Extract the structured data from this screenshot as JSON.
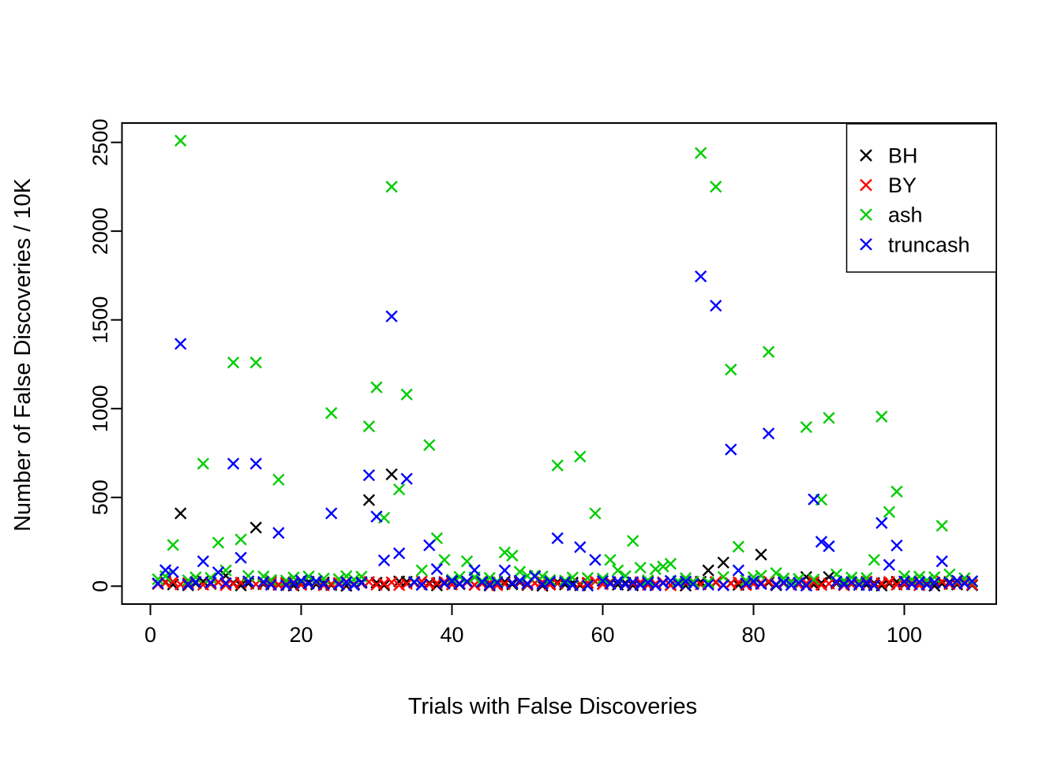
{
  "figure": {
    "background": "#ffffff",
    "xlabel": "Trials with False Discoveries",
    "ylabel": "Number of False Discoveries / 10K"
  },
  "legend": {
    "position": "top-right",
    "items": [
      {
        "label": "BH",
        "color": "#000000",
        "symbol": "x"
      },
      {
        "label": "BY",
        "color": "#FF0000",
        "symbol": "x"
      },
      {
        "label": "ash",
        "color": "#00CD00",
        "symbol": "x"
      },
      {
        "label": "truncash",
        "color": "#0000FF",
        "symbol": "x"
      }
    ]
  },
  "chart_data": {
    "type": "scatter",
    "marker": "x",
    "title": "",
    "xlabel": "Trials with False Discoveries",
    "ylabel": "Number of False Discoveries / 10K",
    "x_ticks": [
      0,
      20,
      40,
      60,
      80,
      100
    ],
    "y_ticks": [
      0,
      500,
      1000,
      1500,
      2000,
      2500
    ],
    "xlim": [
      -3.8,
      112.2
    ],
    "ylim": [
      -100,
      2610
    ],
    "grid": false,
    "legend_position": "top-right",
    "x_start": 1,
    "x_description": "Trial index 1..109; each series array holds the y-value (false discoveries / 10K) for that trial",
    "series": [
      {
        "name": "BH",
        "color": "#000000",
        "values": [
          13,
          24,
          9,
          410,
          5,
          16,
          27,
          12,
          23,
          59,
          19,
          4,
          15,
          330,
          11,
          22,
          7,
          18,
          3,
          14,
          25,
          10,
          21,
          6,
          17,
          2,
          13,
          24,
          485,
          20,
          5,
          630,
          27,
          25,
          23,
          8,
          19,
          4,
          15,
          26,
          11,
          22,
          7,
          18,
          3,
          14,
          25,
          10,
          21,
          6,
          17,
          2,
          13,
          24,
          9,
          20,
          5,
          16,
          27,
          12,
          23,
          8,
          19,
          4,
          15,
          26,
          11,
          22,
          7,
          18,
          3,
          14,
          25,
          89,
          21,
          133,
          17,
          7,
          13,
          24,
          178,
          20,
          5,
          16,
          27,
          12,
          52,
          8,
          19,
          52,
          15,
          26,
          11,
          22,
          7,
          18,
          3,
          14,
          25,
          10,
          21,
          6,
          17,
          2,
          13,
          24,
          9,
          20,
          5
        ]
      },
      {
        "name": "BY",
        "color": "#FF0000",
        "values": [
          12,
          19,
          26,
          10,
          17,
          24,
          8,
          15,
          22,
          6,
          13,
          20,
          27,
          11,
          18,
          25,
          9,
          16,
          23,
          7,
          14,
          21,
          5,
          12,
          19,
          26,
          10,
          17,
          24,
          8,
          15,
          22,
          6,
          13,
          20,
          27,
          11,
          18,
          25,
          9,
          16,
          23,
          7,
          14,
          21,
          5,
          12,
          19,
          26,
          10,
          17,
          24,
          8,
          15,
          22,
          6,
          13,
          20,
          27,
          11,
          18,
          25,
          9,
          16,
          23,
          7,
          14,
          21,
          5,
          12,
          19,
          26,
          10,
          17,
          24,
          8,
          15,
          22,
          6,
          13,
          20,
          27,
          11,
          18,
          25,
          9,
          16,
          23,
          7,
          14,
          21,
          5,
          12,
          19,
          26,
          10,
          17,
          24,
          8,
          15,
          22,
          6,
          13,
          20,
          27,
          11,
          18,
          25,
          9
        ]
      },
      {
        "name": "ash",
        "color": "#00CD00",
        "values": [
          39,
          56,
          232,
          2510,
          33,
          50,
          690,
          47,
          245,
          89,
          1260,
          263,
          58,
          1260,
          55,
          35,
          600,
          32,
          49,
          29,
          55,
          26,
          43,
          975,
          40,
          57,
          37,
          54,
          900,
          1120,
          385,
          2250,
          545,
          1080,
          25,
          89,
          795,
          270,
          148,
          36,
          53,
          140,
          50,
          30,
          47,
          27,
          190,
          172,
          81,
          58,
          60,
          55,
          35,
          680,
          32,
          49,
          730,
          46,
          410,
          43,
          148,
          89,
          57,
          255,
          104,
          34,
          96,
          111,
          126,
          28,
          45,
          25,
          2440,
          22,
          2250,
          52,
          1220,
          222,
          33,
          50,
          59,
          1320,
          74,
          44,
          24,
          41,
          896,
          38,
          487,
          948,
          67,
          32,
          49,
          29,
          46,
          148,
          955,
          418,
          533,
          57,
          37,
          54,
          34,
          51,
          340,
          67,
          28,
          45,
          25
        ]
      },
      {
        "name": "truncash",
        "color": "#0000FF",
        "values": [
          16,
          90,
          80,
          1365,
          10,
          23,
          140,
          20,
          78,
          17,
          690,
          160,
          27,
          690,
          24,
          8,
          300,
          5,
          18,
          31,
          15,
          28,
          12,
          410,
          9,
          22,
          6,
          19,
          625,
          392,
          145,
          1520,
          185,
          605,
          23,
          7,
          230,
          96,
          17,
          30,
          14,
          27,
          90,
          24,
          8,
          21,
          89,
          18,
          31,
          15,
          55,
          12,
          25,
          270,
          22,
          6,
          220,
          3,
          148,
          29,
          13,
          26,
          10,
          23,
          7,
          20,
          4,
          17,
          30,
          14,
          27,
          11,
          1745,
          8,
          1580,
          5,
          770,
          89,
          15,
          28,
          12,
          860,
          9,
          22,
          6,
          19,
          3,
          489,
          250,
          225,
          26,
          10,
          23,
          7,
          20,
          4,
          356,
          120,
          229,
          27,
          11,
          24,
          8,
          21,
          140,
          18,
          31,
          15,
          28
        ]
      }
    ]
  }
}
